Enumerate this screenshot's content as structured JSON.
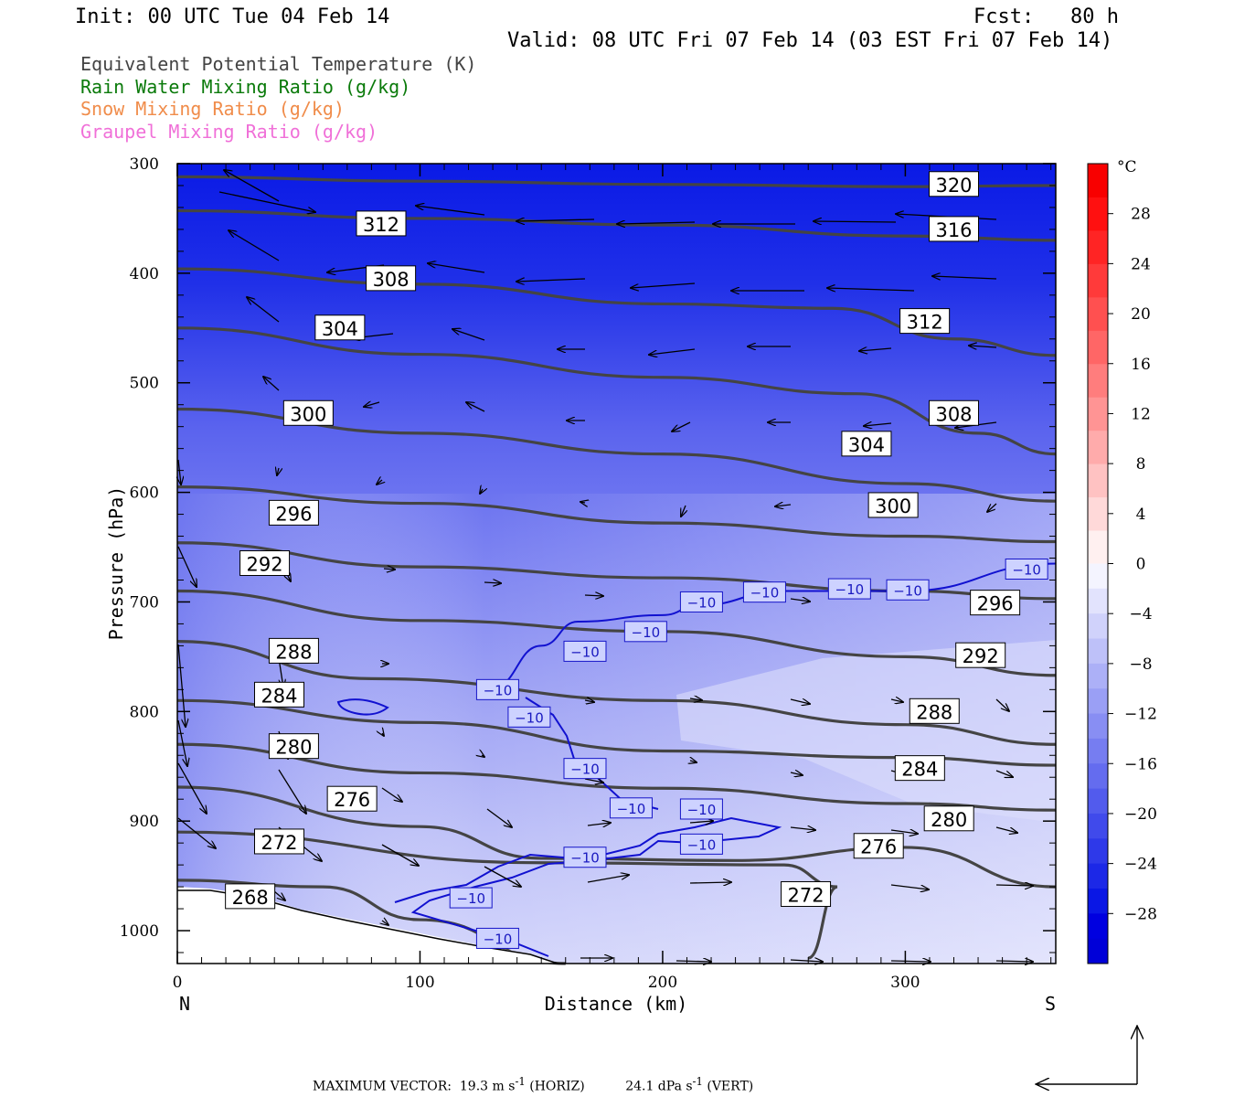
{
  "header": {
    "init": "Init: 00 UTC Tue 04 Feb 14",
    "fcst": "Fcst:   80 h",
    "valid": "Valid: 08 UTC Fri 07 Feb 14 (03 EST Fri 07 Feb 14)"
  },
  "legend": [
    {
      "text": "Equivalent Potential Temperature (K)",
      "color": "#444444"
    },
    {
      "text": "Rain Water Mixing Ratio (g/kg)",
      "color": "#0a7a0a"
    },
    {
      "text": "Snow Mixing Ratio (g/kg)",
      "color": "#f08c4a"
    },
    {
      "text": "Graupel Mixing Ratio (g/kg)",
      "color": "#f070d8"
    }
  ],
  "max_vector": {
    "label": "MAXIMUM VECTOR:",
    "horiz": "19.3 m s",
    "horiz_unit": "-1",
    "horiz_tag": "(HORIZ)",
    "vert": "24.1 dPa s",
    "vert_unit": "-1",
    "vert_tag": "(VERT)"
  },
  "chart_data": {
    "type": "cross-section contour",
    "xlabel": "Distance (km)",
    "ylabel": "Pressure (hPa)",
    "x_ticks": [
      0,
      100,
      200,
      300
    ],
    "y_ticks": [
      300,
      400,
      500,
      600,
      700,
      800,
      900,
      1000
    ],
    "xlim": [
      0,
      362
    ],
    "ylim": [
      300,
      1030
    ],
    "end_labels": {
      "left": "N",
      "right": "S"
    },
    "colorbar": {
      "unit": "°C",
      "ticks": [
        28,
        24,
        20,
        16,
        12,
        8,
        4,
        0,
        -4,
        -8,
        -12,
        -16,
        -20,
        -24,
        -28
      ],
      "range": [
        -32,
        32
      ],
      "colors_warm": [
        "#fff0f0",
        "#ffd9d9",
        "#ffc2c2",
        "#ffabab",
        "#ff9494",
        "#ff7d7d",
        "#ff6666",
        "#ff5050",
        "#ff3a3a",
        "#ff2424",
        "#ff1010",
        "#f80000"
      ],
      "colors_cold": [
        "#f4f4ff",
        "#e2e3fd",
        "#d0d2fb",
        "#bec1f9",
        "#acb0f7",
        "#9a9ff5",
        "#888ef3",
        "#767df1",
        "#646cef",
        "#525bed",
        "#404aeb",
        "#2e39e9",
        "#1c28e7",
        "#0a17e5",
        "#0000e0",
        "#0000d8"
      ]
    },
    "theta_e_contours": [
      {
        "value": 320,
        "points": [
          [
            0,
            312
          ],
          [
            100,
            316
          ],
          [
            200,
            319
          ],
          [
            300,
            321
          ],
          [
            362,
            320
          ]
        ]
      },
      {
        "value": 316,
        "points": [
          [
            0,
            343
          ],
          [
            100,
            350
          ],
          [
            200,
            356
          ],
          [
            300,
            366
          ],
          [
            362,
            370
          ]
        ]
      },
      {
        "value": 312,
        "points": [
          [
            0,
            396
          ],
          [
            100,
            410
          ],
          [
            200,
            428
          ],
          [
            270,
            432
          ],
          [
            320,
            460
          ],
          [
            362,
            475
          ]
        ]
      },
      {
        "value": 308,
        "points": [
          [
            0,
            450
          ],
          [
            100,
            474
          ],
          [
            200,
            495
          ],
          [
            280,
            510
          ],
          [
            330,
            546
          ],
          [
            362,
            565
          ]
        ]
      },
      {
        "value": 304,
        "points": [
          [
            0,
            524
          ],
          [
            100,
            546
          ],
          [
            200,
            565
          ],
          [
            300,
            592
          ],
          [
            362,
            608
          ]
        ]
      },
      {
        "value": 300,
        "points": [
          [
            0,
            595
          ],
          [
            100,
            610
          ],
          [
            200,
            628
          ],
          [
            300,
            640
          ],
          [
            362,
            645
          ]
        ]
      },
      {
        "value": 296,
        "points": [
          [
            0,
            646
          ],
          [
            100,
            668
          ],
          [
            200,
            678
          ],
          [
            300,
            690
          ],
          [
            362,
            697
          ]
        ]
      },
      {
        "value": 292,
        "points": [
          [
            0,
            690
          ],
          [
            100,
            717
          ],
          [
            200,
            727
          ],
          [
            300,
            750
          ],
          [
            362,
            767
          ]
        ]
      },
      {
        "value": 288,
        "points": [
          [
            0,
            736
          ],
          [
            80,
            770
          ],
          [
            200,
            790
          ],
          [
            300,
            812
          ],
          [
            362,
            830
          ]
        ]
      },
      {
        "value": 284,
        "points": [
          [
            0,
            790
          ],
          [
            100,
            810
          ],
          [
            200,
            836
          ],
          [
            300,
            842
          ],
          [
            362,
            849
          ]
        ]
      },
      {
        "value": 280,
        "points": [
          [
            0,
            830
          ],
          [
            100,
            856
          ],
          [
            200,
            870
          ],
          [
            300,
            884
          ],
          [
            362,
            890
          ]
        ]
      },
      {
        "value": 276,
        "points": [
          [
            0,
            869
          ],
          [
            100,
            905
          ],
          [
            150,
            934
          ],
          [
            230,
            936
          ],
          [
            300,
            924
          ],
          [
            362,
            960
          ]
        ]
      },
      {
        "value": 272,
        "points": [
          [
            0,
            910
          ],
          [
            150,
            938
          ],
          [
            250,
            940
          ],
          [
            272,
            960
          ],
          [
            260,
            1025
          ]
        ]
      },
      {
        "value": 268,
        "points": [
          [
            0,
            954
          ],
          [
            60,
            960
          ],
          [
            100,
            990
          ],
          [
            160,
            1030
          ]
        ]
      }
    ],
    "isotherm_minus10": {
      "value": -10,
      "points": [
        [
          130,
          778
        ],
        [
          150,
          740
        ],
        [
          165,
          718
        ],
        [
          200,
          712
        ],
        [
          215,
          703
        ],
        [
          250,
          690
        ],
        [
          300,
          690
        ],
        [
          362,
          665
        ]
      ]
    },
    "contour_labels": [
      {
        "text": "320",
        "x": 320,
        "p": 319
      },
      {
        "text": "316",
        "x": 320,
        "p": 360
      },
      {
        "text": "312",
        "x": 84,
        "p": 355
      },
      {
        "text": "312",
        "x": 308,
        "p": 444
      },
      {
        "text": "308",
        "x": 88,
        "p": 405
      },
      {
        "text": "308",
        "x": 320,
        "p": 528
      },
      {
        "text": "304",
        "x": 67,
        "p": 450
      },
      {
        "text": "304",
        "x": 284,
        "p": 556
      },
      {
        "text": "300",
        "x": 54,
        "p": 528
      },
      {
        "text": "300",
        "x": 295,
        "p": 612
      },
      {
        "text": "296",
        "x": 48,
        "p": 619
      },
      {
        "text": "296",
        "x": 337,
        "p": 701
      },
      {
        "text": "292",
        "x": 36,
        "p": 665
      },
      {
        "text": "292",
        "x": 331,
        "p": 749
      },
      {
        "text": "288",
        "x": 48,
        "p": 745
      },
      {
        "text": "288",
        "x": 312,
        "p": 800
      },
      {
        "text": "284",
        "x": 42,
        "p": 785
      },
      {
        "text": "284",
        "x": 306,
        "p": 852
      },
      {
        "text": "280",
        "x": 48,
        "p": 832
      },
      {
        "text": "280",
        "x": 318,
        "p": 898
      },
      {
        "text": "276",
        "x": 72,
        "p": 880
      },
      {
        "text": "276",
        "x": 289,
        "p": 923
      },
      {
        "text": "272",
        "x": 42,
        "p": 919
      },
      {
        "text": "272",
        "x": 259,
        "p": 967
      },
      {
        "text": "268",
        "x": 30,
        "p": 969
      }
    ],
    "isotherm_labels": [
      {
        "text": "−10",
        "x": 132,
        "p": 780
      },
      {
        "text": "−10",
        "x": 145,
        "p": 805
      },
      {
        "text": "−10",
        "x": 168,
        "p": 745
      },
      {
        "text": "−10",
        "x": 193,
        "p": 727
      },
      {
        "text": "−10",
        "x": 216,
        "p": 700
      },
      {
        "text": "−10",
        "x": 242,
        "p": 691
      },
      {
        "text": "−10",
        "x": 277,
        "p": 688
      },
      {
        "text": "−10",
        "x": 301,
        "p": 689
      },
      {
        "text": "−10",
        "x": 350,
        "p": 670
      },
      {
        "text": "−10",
        "x": 168,
        "p": 852
      },
      {
        "text": "−10",
        "x": 187,
        "p": 888
      },
      {
        "text": "−10",
        "x": 216,
        "p": 889
      },
      {
        "text": "−10",
        "x": 216,
        "p": 921
      },
      {
        "text": "−10",
        "x": 168,
        "p": 933
      },
      {
        "text": "−10",
        "x": 121,
        "p": 970
      },
      {
        "text": "−10",
        "x": 132,
        "p": 1007
      }
    ]
  }
}
